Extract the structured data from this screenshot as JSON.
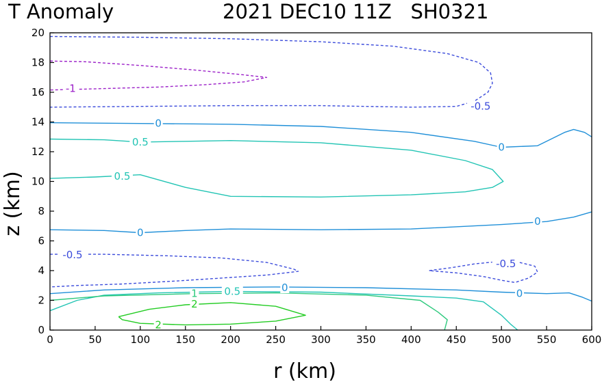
{
  "chart_data": {
    "type": "contour",
    "title_left": "T Anomaly",
    "title_right": "2021 DEC10 11Z   SH0321",
    "xlabel": "r (km)",
    "ylabel": "z (km)",
    "xlim": [
      0,
      600
    ],
    "ylim": [
      0,
      20
    ],
    "xticks": [
      "0",
      "50",
      "100",
      "150",
      "200",
      "250",
      "300",
      "350",
      "400",
      "450",
      "500",
      "550",
      "600"
    ],
    "yticks": [
      "0",
      "2",
      "4",
      "6",
      "8",
      "10",
      "12",
      "14",
      "16",
      "18",
      "20"
    ],
    "levels": [
      {
        "name": "level-minus-1",
        "value": -1,
        "color": "#9b1fc8",
        "dashed": true,
        "paths": [
          [
            [
              0,
              18.1
            ],
            [
              40,
              18.05
            ],
            [
              100,
              17.8
            ],
            [
              160,
              17.5
            ],
            [
              210,
              17.2
            ],
            [
              240,
              17.0
            ],
            [
              215,
              16.7
            ],
            [
              170,
              16.5
            ],
            [
              120,
              16.35
            ],
            [
              60,
              16.25
            ],
            [
              30,
              16.2
            ],
            [
              0,
              16.15
            ]
          ]
        ],
        "labels": [
          {
            "text": "-1",
            "x": 23,
            "y": 16.25
          }
        ]
      },
      {
        "name": "level-minus-0p5",
        "value": -0.5,
        "color": "#3b4bdb",
        "dashed": true,
        "paths": [
          [
            [
              0,
              19.75
            ],
            [
              100,
              19.7
            ],
            [
              200,
              19.6
            ],
            [
              300,
              19.4
            ],
            [
              380,
              19.1
            ],
            [
              440,
              18.6
            ],
            [
              475,
              18.0
            ],
            [
              488,
              17.3
            ],
            [
              490,
              16.6
            ],
            [
              485,
              16.0
            ],
            [
              470,
              15.4
            ],
            [
              450,
              15.05
            ],
            [
              400,
              15.0
            ],
            [
              300,
              15.1
            ],
            [
              200,
              15.1
            ],
            [
              100,
              15.05
            ],
            [
              0,
              15.0
            ]
          ],
          [
            [
              0,
              5.1
            ],
            [
              60,
              5.1
            ],
            [
              130,
              5.0
            ],
            [
              190,
              4.85
            ],
            [
              240,
              4.55
            ],
            [
              270,
              4.1
            ],
            [
              275,
              3.95
            ],
            [
              240,
              3.7
            ],
            [
              190,
              3.5
            ],
            [
              140,
              3.3
            ],
            [
              80,
              3.1
            ],
            [
              30,
              3.0
            ],
            [
              0,
              2.9
            ]
          ],
          [
            [
              420,
              4.0
            ],
            [
              445,
              4.2
            ],
            [
              470,
              4.45
            ],
            [
              495,
              4.6
            ],
            [
              520,
              4.55
            ],
            [
              537,
              4.3
            ],
            [
              540,
              3.9
            ],
            [
              530,
              3.5
            ],
            [
              515,
              3.2
            ],
            [
              500,
              3.35
            ],
            [
              480,
              3.6
            ],
            [
              450,
              3.85
            ],
            [
              420,
              4.0
            ]
          ]
        ],
        "labels": [
          {
            "text": "-0.5",
            "x": 25,
            "y": 5.05
          },
          {
            "text": "-0.5",
            "x": 477,
            "y": 15.05
          },
          {
            "text": "-0.5",
            "x": 505,
            "y": 4.45
          }
        ]
      },
      {
        "name": "level-0",
        "value": 0,
        "color": "#1f8fd8",
        "dashed": false,
        "paths": [
          [
            [
              0,
              13.95
            ],
            [
              100,
              13.9
            ],
            [
              200,
              13.85
            ],
            [
              300,
              13.7
            ],
            [
              400,
              13.3
            ],
            [
              470,
              12.7
            ],
            [
              500,
              12.3
            ],
            [
              540,
              12.4
            ],
            [
              570,
              13.3
            ],
            [
              580,
              13.5
            ],
            [
              592,
              13.3
            ],
            [
              600,
              13.0
            ]
          ],
          [
            [
              0,
              6.75
            ],
            [
              60,
              6.7
            ],
            [
              100,
              6.55
            ],
            [
              150,
              6.7
            ],
            [
              200,
              6.8
            ],
            [
              300,
              6.75
            ],
            [
              400,
              6.8
            ],
            [
              500,
              7.1
            ],
            [
              550,
              7.3
            ],
            [
              580,
              7.6
            ],
            [
              600,
              7.95
            ]
          ],
          [
            [
              0,
              2.45
            ],
            [
              60,
              2.7
            ],
            [
              150,
              2.85
            ],
            [
              250,
              2.9
            ],
            [
              350,
              2.85
            ],
            [
              450,
              2.7
            ],
            [
              500,
              2.55
            ],
            [
              550,
              2.45
            ],
            [
              575,
              2.5
            ],
            [
              590,
              2.2
            ],
            [
              600,
              1.95
            ]
          ]
        ],
        "labels": [
          {
            "text": "0",
            "x": 120,
            "y": 13.9
          },
          {
            "text": "0",
            "x": 500,
            "y": 12.3
          },
          {
            "text": "0",
            "x": 100,
            "y": 6.55
          },
          {
            "text": "0",
            "x": 540,
            "y": 7.3
          },
          {
            "text": "0",
            "x": 260,
            "y": 2.85
          },
          {
            "text": "0",
            "x": 520,
            "y": 2.45
          }
        ]
      },
      {
        "name": "level-0p5",
        "value": 0.5,
        "color": "#22c4b4",
        "dashed": false,
        "paths": [
          [
            [
              0,
              12.85
            ],
            [
              60,
              12.8
            ],
            [
              100,
              12.65
            ],
            [
              150,
              12.7
            ],
            [
              200,
              12.75
            ],
            [
              300,
              12.6
            ],
            [
              400,
              12.1
            ],
            [
              460,
              11.4
            ],
            [
              490,
              10.8
            ],
            [
              502,
              10.0
            ],
            [
              490,
              9.6
            ],
            [
              460,
              9.3
            ],
            [
              400,
              9.1
            ],
            [
              300,
              8.95
            ],
            [
              200,
              9.0
            ],
            [
              150,
              9.6
            ],
            [
              100,
              10.45
            ],
            [
              50,
              10.3
            ],
            [
              0,
              10.2
            ]
          ],
          [
            [
              0,
              1.3
            ],
            [
              30,
              2.0
            ],
            [
              60,
              2.35
            ],
            [
              120,
              2.5
            ],
            [
              200,
              2.6
            ],
            [
              300,
              2.55
            ],
            [
              400,
              2.3
            ],
            [
              450,
              2.15
            ],
            [
              480,
              1.9
            ],
            [
              500,
              1.0
            ],
            [
              510,
              0.4
            ],
            [
              518,
              0.0
            ]
          ]
        ],
        "labels": [
          {
            "text": "0.5",
            "x": 100,
            "y": 12.65
          },
          {
            "text": "0.5",
            "x": 80,
            "y": 10.35
          },
          {
            "text": "0.5",
            "x": 202,
            "y": 2.6
          }
        ]
      },
      {
        "name": "level-1",
        "value": 1,
        "color": "#2cc97c",
        "dashed": false,
        "paths": [
          [
            [
              0,
              2.0
            ],
            [
              60,
              2.3
            ],
            [
              160,
              2.45
            ],
            [
              250,
              2.5
            ],
            [
              350,
              2.35
            ],
            [
              410,
              2.0
            ],
            [
              430,
              1.2
            ],
            [
              440,
              0.7
            ],
            [
              437,
              0.0
            ]
          ]
        ],
        "labels": [
          {
            "text": "1",
            "x": 160,
            "y": 2.45
          }
        ]
      },
      {
        "name": "level-2",
        "value": 2,
        "color": "#22cc22",
        "dashed": false,
        "paths": [
          [
            [
              76,
              0.9
            ],
            [
              110,
              1.4
            ],
            [
              150,
              1.7
            ],
            [
              200,
              1.85
            ],
            [
              250,
              1.6
            ],
            [
              283,
              1.0
            ],
            [
              250,
              0.6
            ],
            [
              200,
              0.4
            ],
            [
              150,
              0.35
            ],
            [
              100,
              0.45
            ],
            [
              80,
              0.7
            ],
            [
              76,
              0.9
            ]
          ]
        ],
        "labels": [
          {
            "text": "2",
            "x": 160,
            "y": 1.75
          },
          {
            "text": "2",
            "x": 120,
            "y": 0.35
          }
        ]
      }
    ]
  }
}
